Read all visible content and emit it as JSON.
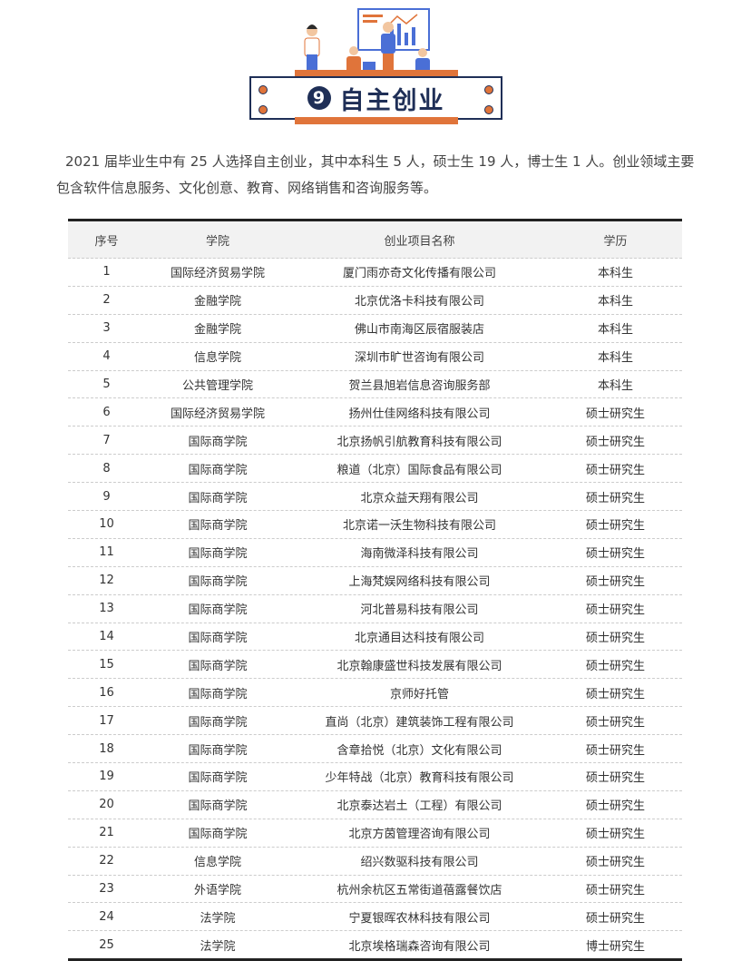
{
  "section": {
    "number": "9",
    "title": "自主创业"
  },
  "intro": "2021 届毕业生中有 25 人选择自主创业，其中本科生 5 人，硕士生 19 人，博士生 1 人。创业领域主要包含软件信息服务、文化创意、教育、网络销售和咨询服务等。",
  "colors": {
    "navy": "#1f2f57",
    "orange": "#e0743a"
  },
  "table": {
    "headers": [
      "序号",
      "学院",
      "创业项目名称",
      "学历"
    ],
    "rows": [
      [
        "1",
        "国际经济贸易学院",
        "厦门雨亦奇文化传播有限公司",
        "本科生"
      ],
      [
        "2",
        "金融学院",
        "北京优洛卡科技有限公司",
        "本科生"
      ],
      [
        "3",
        "金融学院",
        "佛山市南海区辰宿服装店",
        "本科生"
      ],
      [
        "4",
        "信息学院",
        "深圳市旷世咨询有限公司",
        "本科生"
      ],
      [
        "5",
        "公共管理学院",
        "贺兰县旭岩信息咨询服务部",
        "本科生"
      ],
      [
        "6",
        "国际经济贸易学院",
        "扬州仕佳网络科技有限公司",
        "硕士研究生"
      ],
      [
        "7",
        "国际商学院",
        "北京扬帆引航教育科技有限公司",
        "硕士研究生"
      ],
      [
        "8",
        "国际商学院",
        "粮道（北京）国际食品有限公司",
        "硕士研究生"
      ],
      [
        "9",
        "国际商学院",
        "北京众益天翔有限公司",
        "硕士研究生"
      ],
      [
        "10",
        "国际商学院",
        "北京诺一沃生物科技有限公司",
        "硕士研究生"
      ],
      [
        "11",
        "国际商学院",
        "海南微泽科技有限公司",
        "硕士研究生"
      ],
      [
        "12",
        "国际商学院",
        "上海梵娱网络科技有限公司",
        "硕士研究生"
      ],
      [
        "13",
        "国际商学院",
        "河北普易科技有限公司",
        "硕士研究生"
      ],
      [
        "14",
        "国际商学院",
        "北京通目达科技有限公司",
        "硕士研究生"
      ],
      [
        "15",
        "国际商学院",
        "北京翰康盛世科技发展有限公司",
        "硕士研究生"
      ],
      [
        "16",
        "国际商学院",
        "京师好托管",
        "硕士研究生"
      ],
      [
        "17",
        "国际商学院",
        "直尚（北京）建筑装饰工程有限公司",
        "硕士研究生"
      ],
      [
        "18",
        "国际商学院",
        "含章拾悦（北京）文化有限公司",
        "硕士研究生"
      ],
      [
        "19",
        "国际商学院",
        "少年特战（北京）教育科技有限公司",
        "硕士研究生"
      ],
      [
        "20",
        "国际商学院",
        "北京泰达岩土（工程）有限公司",
        "硕士研究生"
      ],
      [
        "21",
        "国际商学院",
        "北京方茵管理咨询有限公司",
        "硕士研究生"
      ],
      [
        "22",
        "信息学院",
        "绍兴数驱科技有限公司",
        "硕士研究生"
      ],
      [
        "23",
        "外语学院",
        "杭州余杭区五常街道蓓露餐饮店",
        "硕士研究生"
      ],
      [
        "24",
        "法学院",
        "宁夏银晖农林科技有限公司",
        "硕士研究生"
      ],
      [
        "25",
        "法学院",
        "北京埃格瑞森咨询有限公司",
        "博士研究生"
      ]
    ]
  }
}
